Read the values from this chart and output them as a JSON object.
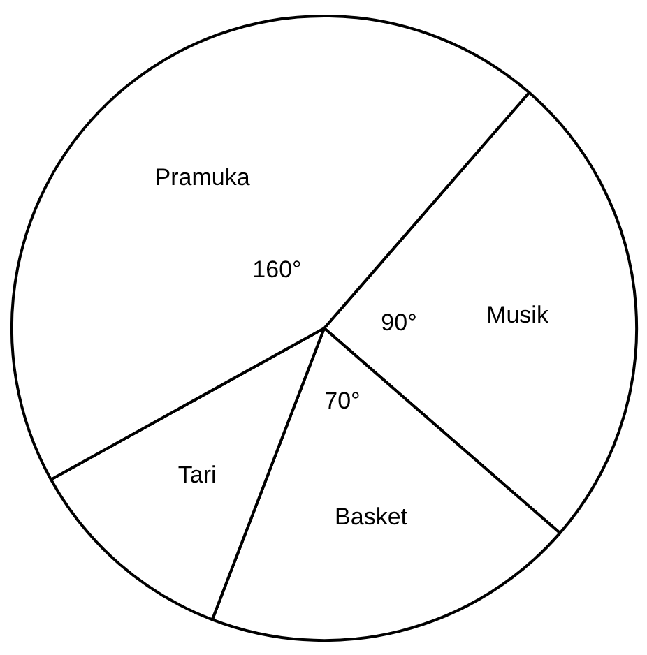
{
  "chart_data": {
    "type": "pie",
    "categories": [
      "Musik",
      "Basket",
      "Tari",
      "Pramuka"
    ],
    "values": [
      90,
      70,
      40,
      160
    ],
    "value_labels": [
      "90°",
      "70°",
      null,
      "160°"
    ],
    "colors": [
      "#ffffff",
      "#ffffff",
      "#ffffff",
      "#ffffff"
    ]
  }
}
